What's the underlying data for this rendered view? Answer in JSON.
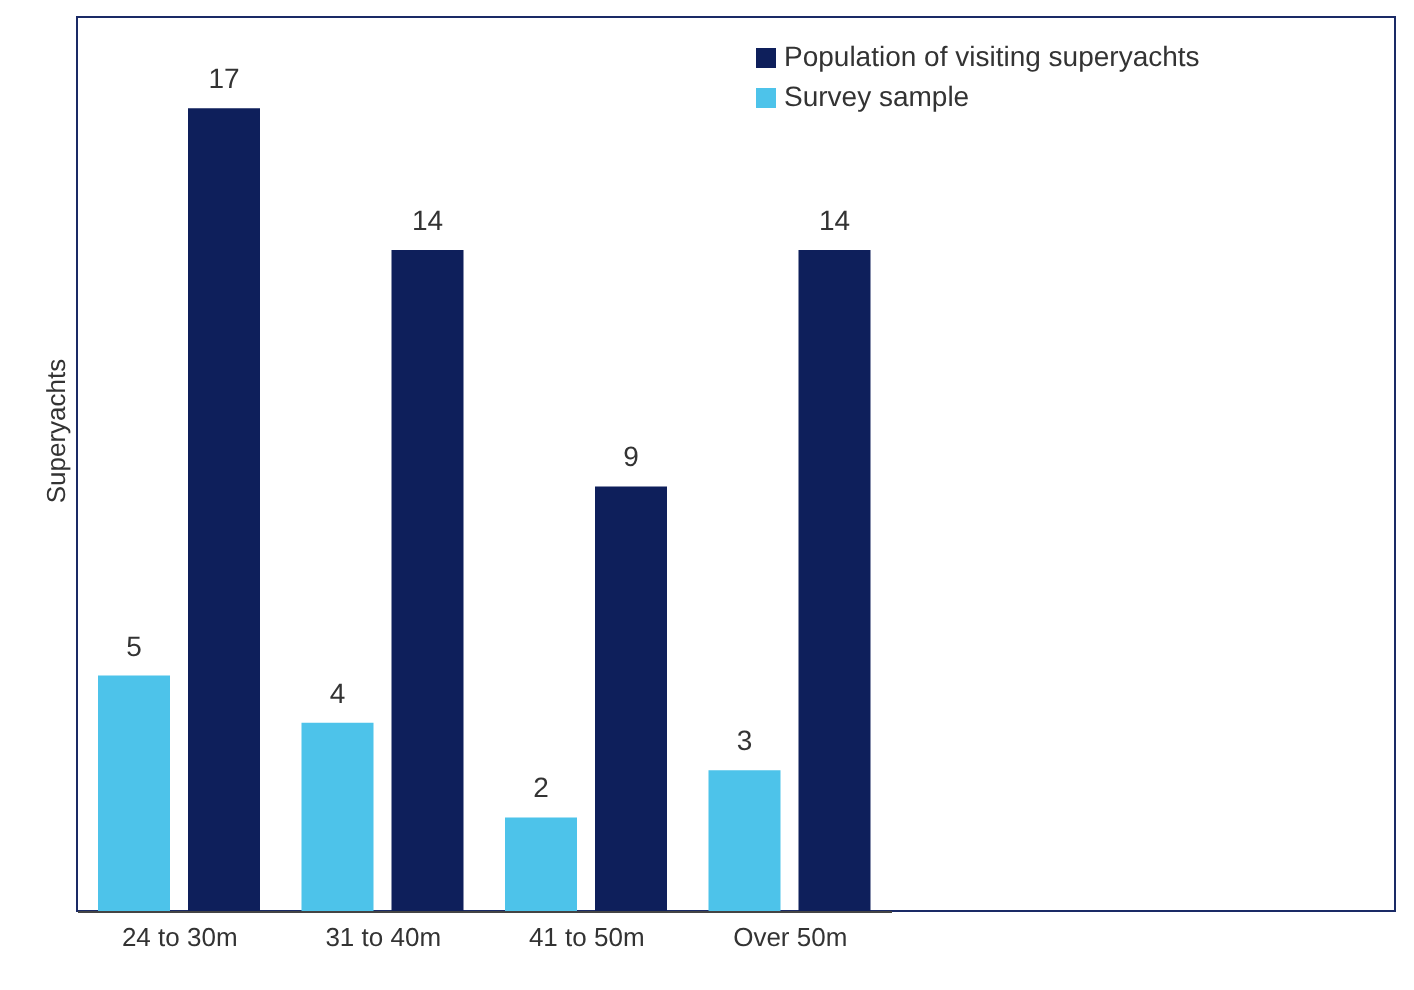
{
  "chart_data": {
    "type": "bar",
    "ylabel": "Superyachts",
    "categories": [
      "24 to 30m",
      "31 to 40m",
      "41 to 50m",
      "Over 50m"
    ],
    "series": [
      {
        "name": "Survey sample",
        "color": "#4dc3ea",
        "values": [
          5,
          4,
          2,
          3
        ]
      },
      {
        "name": "Population of visiting superyachts",
        "color": "#0e1f5b",
        "values": [
          17,
          14,
          9,
          14
        ]
      }
    ],
    "data_labels": true,
    "legend": "top right",
    "grid": false
  }
}
